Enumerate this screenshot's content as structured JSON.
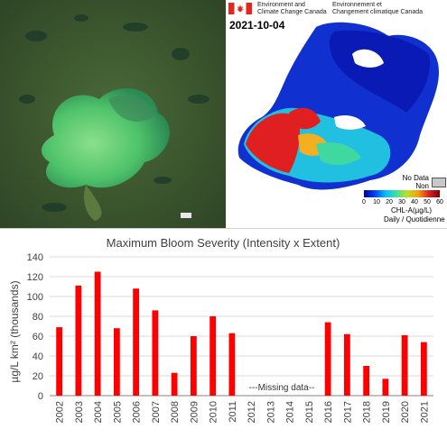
{
  "satellite": {
    "description_icon": "satellite-true-color-image"
  },
  "chl_map": {
    "agency_en": "Environment and\nClimate Change Canada",
    "agency_fr": "Environnement et\nChangement climatique Canada",
    "date": "2021-10-04",
    "nodata_label": "No Data\nNon disponible",
    "colorbar_ticks": [
      "0",
      "10",
      "20",
      "30",
      "40",
      "50",
      "60"
    ],
    "colorbar_label": "CHL-A(µg/L)",
    "period_label": "Daily / Quotidienne",
    "colors": {
      "nodata": "#c8c8c8",
      "flag_red": "#e5251f"
    }
  },
  "chart_data": {
    "type": "bar",
    "title": "Maximum Bloom Severity (Intensity x Extent)",
    "ylabel": "µg/L km² (thousands)",
    "xlabel": "",
    "ylim": [
      0,
      140
    ],
    "yticks": [
      0,
      20,
      40,
      60,
      80,
      100,
      120,
      140
    ],
    "categories": [
      "2002",
      "2003",
      "2004",
      "2005",
      "2006",
      "2007",
      "2008",
      "2009",
      "2010",
      "2011",
      "2012",
      "2013",
      "2014",
      "2015",
      "2016",
      "2017",
      "2018",
      "2019",
      "2020",
      "2021"
    ],
    "values": [
      69,
      111,
      125,
      68,
      108,
      86,
      23,
      60,
      80,
      63,
      null,
      null,
      null,
      null,
      74,
      62,
      30,
      17,
      61,
      54
    ],
    "annotation": "---Missing data--",
    "bar_color": "#ff0000",
    "grid": "horizontal"
  }
}
